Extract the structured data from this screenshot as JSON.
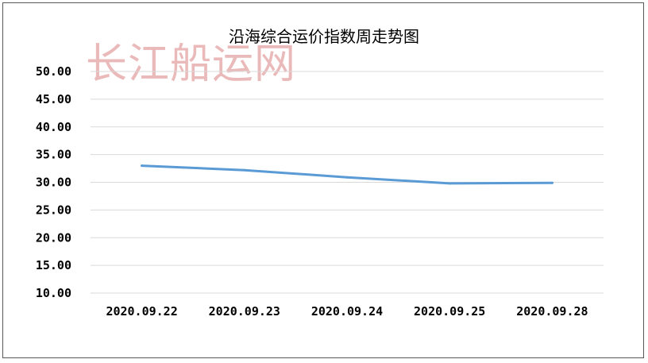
{
  "watermark": "长江船运网",
  "chart_data": {
    "type": "line",
    "title": "沿海综合运价指数周走势图",
    "xlabel": "",
    "ylabel": "",
    "categories": [
      "2020.09.22",
      "2020.09.23",
      "2020.09.24",
      "2020.09.25",
      "2020.09.28"
    ],
    "series": [
      {
        "values": [
          33.0,
          32.2,
          30.9,
          29.8,
          29.9
        ]
      }
    ],
    "ylim": [
      10,
      50
    ],
    "yticks": [
      "10.00",
      "15.00",
      "20.00",
      "25.00",
      "30.00",
      "35.00",
      "40.00",
      "45.00",
      "50.00"
    ],
    "grid": true,
    "colors": {
      "line": "#5b9bd5",
      "grid": "#d9d9d9"
    }
  }
}
